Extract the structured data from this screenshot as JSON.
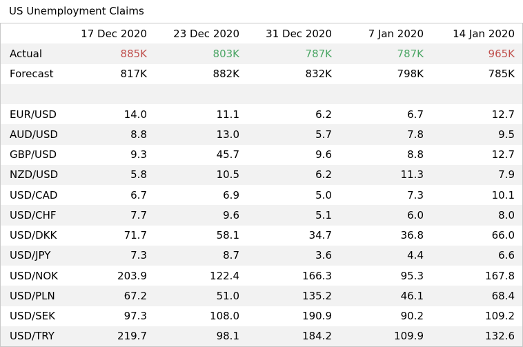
{
  "title": "US Unemployment Claims",
  "colors": {
    "worse_than_forecast": "#c0504d",
    "better_than_forecast": "#4aa564",
    "stripe": "#f2f2f2"
  },
  "columns": [
    "17 Dec 2020",
    "23 Dec 2020",
    "31 Dec 2020",
    "7 Jan 2020",
    "14 Jan 2020"
  ],
  "actual": {
    "label": "Actual",
    "values": [
      "885K",
      "803K",
      "787K",
      "787K",
      "965K"
    ]
  },
  "forecast": {
    "label": "Forecast",
    "values": [
      "817K",
      "882K",
      "832K",
      "798K",
      "785K"
    ]
  },
  "pairs": [
    {
      "label": "EUR/USD",
      "values": [
        "14.0",
        "11.1",
        "6.2",
        "6.7",
        "12.7"
      ]
    },
    {
      "label": "AUD/USD",
      "values": [
        "8.8",
        "13.0",
        "5.7",
        "7.8",
        "9.5"
      ]
    },
    {
      "label": "GBP/USD",
      "values": [
        "9.3",
        "45.7",
        "9.6",
        "8.8",
        "12.7"
      ]
    },
    {
      "label": "NZD/USD",
      "values": [
        "5.8",
        "10.5",
        "6.2",
        "11.3",
        "7.9"
      ]
    },
    {
      "label": "USD/CAD",
      "values": [
        "6.7",
        "6.9",
        "5.0",
        "7.3",
        "10.1"
      ]
    },
    {
      "label": "USD/CHF",
      "values": [
        "7.7",
        "9.6",
        "5.1",
        "6.0",
        "8.0"
      ]
    },
    {
      "label": "USD/DKK",
      "values": [
        "71.7",
        "58.1",
        "34.7",
        "36.8",
        "66.0"
      ]
    },
    {
      "label": "USD/JPY",
      "values": [
        "7.3",
        "8.7",
        "3.6",
        "4.4",
        "6.6"
      ]
    },
    {
      "label": "USD/NOK",
      "values": [
        "203.9",
        "122.4",
        "166.3",
        "95.3",
        "167.8"
      ]
    },
    {
      "label": "USD/PLN",
      "values": [
        "67.2",
        "51.0",
        "135.2",
        "46.1",
        "68.4"
      ]
    },
    {
      "label": "USD/SEK",
      "values": [
        "97.3",
        "108.0",
        "190.9",
        "90.2",
        "109.2"
      ]
    },
    {
      "label": "USD/TRY",
      "values": [
        "219.7",
        "98.1",
        "184.2",
        "109.9",
        "132.6"
      ]
    }
  ]
}
